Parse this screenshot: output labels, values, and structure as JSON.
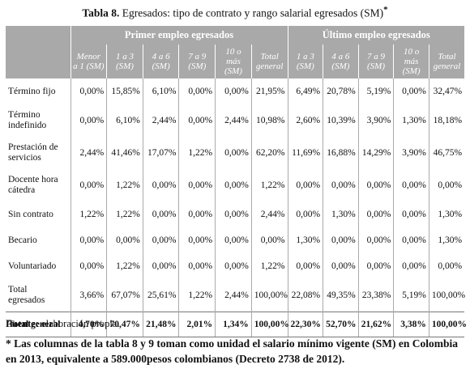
{
  "title": {
    "label": "Tabla 8.",
    "text": "Egresados: tipo de contrato y rango salarial egresados (SM)",
    "marker": "*"
  },
  "table": {
    "groups": [
      "Primer empleo egresados",
      "Último empleo egresados"
    ],
    "columns": [
      [
        "Menor\na 1 (SM)",
        "1 a 3\n(SM)",
        "4 a 6\n(SM)",
        "7 a 9\n(SM)",
        "10 o\nmás\n(SM)",
        "Total\ngeneral"
      ],
      [
        "1 a 3\n(SM)",
        "4 a 6\n(SM)",
        "7 a 9\n(SM)",
        "10 o\nmás\n(SM)",
        "Total\ngeneral"
      ]
    ],
    "rows": [
      {
        "label": "Término fijo",
        "cells": [
          "0,00%",
          "15,85%",
          "6,10%",
          "0,00%",
          "0,00%",
          "21,95%",
          "6,49%",
          "20,78%",
          "5,19%",
          "0,00%",
          "32,47%"
        ]
      },
      {
        "label": "Término\nindefinido",
        "cells": [
          "0,00%",
          "6,10%",
          "2,44%",
          "0,00%",
          "2,44%",
          "10,98%",
          "2,60%",
          "10,39%",
          "3,90%",
          "1,30%",
          "18,18%"
        ]
      },
      {
        "label": "Prestación de\nservicios",
        "cells": [
          "2,44%",
          "41,46%",
          "17,07%",
          "1,22%",
          "0,00%",
          "62,20%",
          "11,69%",
          "16,88%",
          "14,29%",
          "3,90%",
          "46,75%"
        ]
      },
      {
        "label": "Docente hora\ncátedra",
        "cells": [
          "0,00%",
          "1,22%",
          "0,00%",
          "0,00%",
          "0,00%",
          "1,22%",
          "0,00%",
          "0,00%",
          "0,00%",
          "0,00%",
          "0,00%"
        ]
      },
      {
        "label": "Sin contrato",
        "cells": [
          "1,22%",
          "1,22%",
          "0,00%",
          "0,00%",
          "0,00%",
          "2,44%",
          "0,00%",
          "1,30%",
          "0,00%",
          "0,00%",
          "1,30%"
        ]
      },
      {
        "label": "Becario",
        "cells": [
          "0,00%",
          "0,00%",
          "0,00%",
          "0,00%",
          "0,00%",
          "0,00%",
          "1,30%",
          "0,00%",
          "0,00%",
          "0,00%",
          "1,30%"
        ]
      },
      {
        "label": "Voluntariado",
        "cells": [
          "0,00%",
          "1,22%",
          "0,00%",
          "0,00%",
          "0,00%",
          "1,22%",
          "0,00%",
          "0,00%",
          "0,00%",
          "0,00%",
          "0,00%"
        ]
      },
      {
        "label": "Total\negresados",
        "cells": [
          "3,66%",
          "67,07%",
          "25,61%",
          "1,22%",
          "2,44%",
          "100,00%",
          "22,08%",
          "49,35%",
          "23,38%",
          "5,19%",
          "100,00%"
        ]
      },
      {
        "label": "Total general",
        "cells": [
          "4,70%",
          "70,47%",
          "21,48%",
          "2,01%",
          "1,34%",
          "100,00%",
          "22,30%",
          "52,70%",
          "21,62%",
          "3,38%",
          "100,00%"
        ]
      }
    ]
  },
  "source": {
    "label": "Fuente:",
    "text": "elaboración propia."
  },
  "footnote": "* Las columnas de la tabla 8 y 9 toman como unidad el salario mínimo vigente (SM) en Colombia en 2013, equivalente a 589.000pesos colombianos (Decreto 2738 de 2012)."
}
